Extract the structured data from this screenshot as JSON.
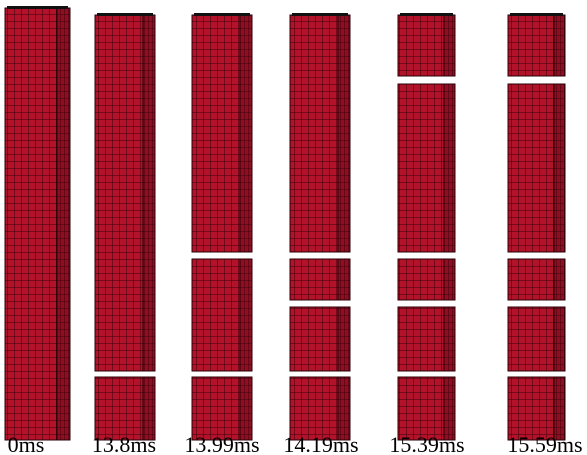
{
  "frames": [
    {
      "label": "0ms"
    },
    {
      "label": "13.8ms"
    },
    {
      "label": "13.99ms"
    },
    {
      "label": "14.19ms"
    },
    {
      "label": "15.39ms"
    },
    {
      "label": "15.59ms"
    }
  ]
}
